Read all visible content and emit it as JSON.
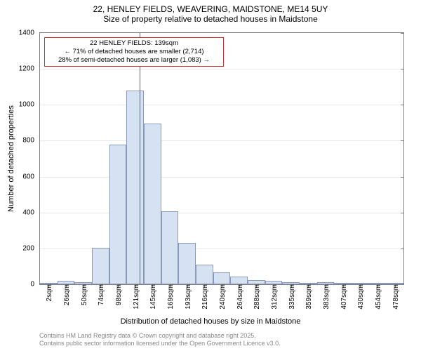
{
  "title": {
    "line1": "22, HENLEY FIELDS, WEAVERING, MAIDSTONE, ME14 5UY",
    "line2": "Size of property relative to detached houses in Maidstone"
  },
  "chart": {
    "type": "histogram",
    "ylabel": "Number of detached properties",
    "xlabel": "Distribution of detached houses by size in Maidstone",
    "ylim": [
      0,
      1400
    ],
    "ytick_step": 200,
    "yticks": [
      0,
      200,
      400,
      600,
      800,
      1000,
      1200,
      1400
    ],
    "xticks": [
      "2sqm",
      "26sqm",
      "50sqm",
      "74sqm",
      "98sqm",
      "121sqm",
      "145sqm",
      "169sqm",
      "193sqm",
      "216sqm",
      "240sqm",
      "264sqm",
      "288sqm",
      "312sqm",
      "335sqm",
      "359sqm",
      "383sqm",
      "407sqm",
      "430sqm",
      "454sqm",
      "478sqm"
    ],
    "bar_fill": "#d6e1f2",
    "bar_border": "#8899bb",
    "grid_color": "#e8e8e8",
    "axis_color": "#808080",
    "background": "#ffffff",
    "marker_color": "#cc3333",
    "marker_x_index": 5.75,
    "bars": [
      {
        "x_index": 0,
        "value": 5
      },
      {
        "x_index": 1,
        "value": 20
      },
      {
        "x_index": 2,
        "value": 10
      },
      {
        "x_index": 3,
        "value": 205
      },
      {
        "x_index": 4,
        "value": 780
      },
      {
        "x_index": 5,
        "value": 1080
      },
      {
        "x_index": 6,
        "value": 895
      },
      {
        "x_index": 7,
        "value": 405
      },
      {
        "x_index": 8,
        "value": 230
      },
      {
        "x_index": 9,
        "value": 110
      },
      {
        "x_index": 10,
        "value": 65
      },
      {
        "x_index": 11,
        "value": 45
      },
      {
        "x_index": 12,
        "value": 25
      },
      {
        "x_index": 13,
        "value": 20
      },
      {
        "x_index": 14,
        "value": 10
      },
      {
        "x_index": 15,
        "value": 8
      },
      {
        "x_index": 16,
        "value": 10
      },
      {
        "x_index": 17,
        "value": 5
      },
      {
        "x_index": 18,
        "value": 3
      },
      {
        "x_index": 19,
        "value": 3
      },
      {
        "x_index": 20,
        "value": 2
      }
    ],
    "bar_width_ratio": 1.0
  },
  "annotation": {
    "line1": "22 HENLEY FIELDS: 139sqm",
    "line2": "← 71% of detached houses are smaller (2,714)",
    "line3": "28% of semi-detached houses are larger (1,083) →"
  },
  "footer": {
    "line1": "Contains HM Land Registry data © Crown copyright and database right 2025.",
    "line2": "Contains public sector information licensed under the Open Government Licence v3.0."
  }
}
